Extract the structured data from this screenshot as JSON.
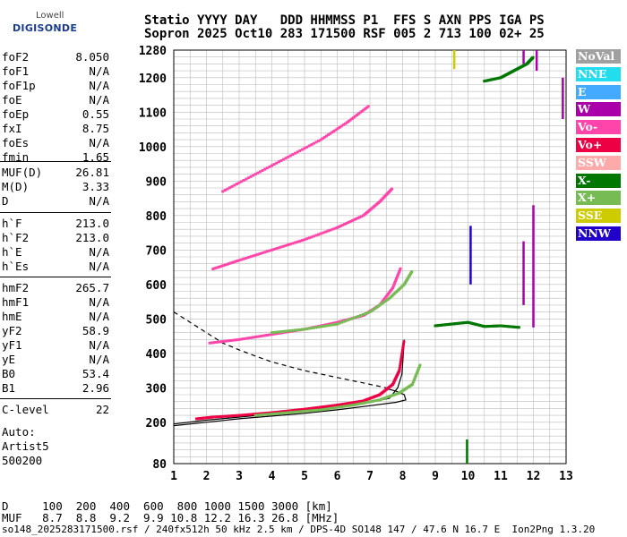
{
  "logo": {
    "line1": "Lowell",
    "line2": "DIGISONDE"
  },
  "header": {
    "row1": "Statio YYYY DAY   DDD HHMMSS P1  FFS S AXN PPS IGA PS",
    "row2": "Sopron 2025 Oct10 283 171500 RSF 005 2 713 100 02+ 25"
  },
  "params": {
    "group1": [
      {
        "k": "foF2",
        "v": "8.050"
      },
      {
        "k": "foF1",
        "v": "N/A"
      },
      {
        "k": "foF1p",
        "v": "N/A"
      },
      {
        "k": "foE",
        "v": "N/A"
      },
      {
        "k": "foEp",
        "v": "0.55"
      },
      {
        "k": "fxI",
        "v": "8.75"
      },
      {
        "k": "foEs",
        "v": "N/A"
      },
      {
        "k": "fmin",
        "v": "1.65"
      }
    ],
    "group2": [
      {
        "k": "MUF(D)",
        "v": "26.81"
      },
      {
        "k": "M(D)",
        "v": "3.33"
      },
      {
        "k": "D",
        "v": "N/A"
      }
    ],
    "group3": [
      {
        "k": "h`F",
        "v": "213.0"
      },
      {
        "k": "h`F2",
        "v": "213.0"
      },
      {
        "k": "h`E",
        "v": "N/A"
      },
      {
        "k": "h`Es",
        "v": "N/A"
      }
    ],
    "group4": [
      {
        "k": "hmF2",
        "v": "265.7"
      },
      {
        "k": "hmF1",
        "v": "N/A"
      },
      {
        "k": "hmE",
        "v": "N/A"
      },
      {
        "k": "yF2",
        "v": "58.9"
      },
      {
        "k": "yF1",
        "v": "N/A"
      },
      {
        "k": "yE",
        "v": "N/A"
      },
      {
        "k": "B0",
        "v": "53.4"
      },
      {
        "k": "B1",
        "v": "2.96"
      }
    ],
    "clevel": {
      "k": "C-level",
      "v": "22"
    }
  },
  "autoscaling": {
    "line1": "Auto:",
    "line2": "Artist5",
    "line3": "500200"
  },
  "legend": [
    {
      "label": "NoVal",
      "color": "#a0a0a0"
    },
    {
      "label": "NNE",
      "color": "#22ddee"
    },
    {
      "label": "E",
      "color": "#44aaff"
    },
    {
      "label": "W",
      "color": "#aa00aa"
    },
    {
      "label": "Vo-",
      "color": "#ff44aa"
    },
    {
      "label": "Vo+",
      "color": "#ee0044"
    },
    {
      "label": "SSW",
      "color": "#ffaaaa"
    },
    {
      "label": "X-",
      "color": "#007700"
    },
    {
      "label": "X+",
      "color": "#77bb55"
    },
    {
      "label": "SSE",
      "color": "#cccc00"
    },
    {
      "label": "NNW",
      "color": "#2200cc"
    }
  ],
  "footer": {
    "row1": "D     100  200  400  600  800 1000 1500 3000 [km]",
    "row2": "MUF   8.7  8.8  9.2  9.9 10.8 12.2 16.3 26.8 [MHz]",
    "filename": "so148_2025283171500.rsf / 240fx512h 50 kHz 2.5 km / DPS-4D SO148 147 / 47.6 N 16.7 E  Ion2Png 1.3.20"
  },
  "chart_data": {
    "type": "scatter",
    "xlim": [
      1,
      13
    ],
    "ylim": [
      80,
      1280
    ],
    "x_ticks": [
      1,
      2,
      3,
      4,
      5,
      6,
      7,
      8,
      9,
      10,
      11,
      12,
      13
    ],
    "y_ticks": [
      80,
      200,
      300,
      400,
      500,
      600,
      700,
      800,
      900,
      1000,
      1100,
      1200,
      1280
    ],
    "grid": true,
    "traces": [
      {
        "name": "O-trace F2",
        "color": "#ee0044",
        "points": [
          [
            1.7,
            210
          ],
          [
            2.2,
            215
          ],
          [
            3,
            220
          ],
          [
            4,
            228
          ],
          [
            5,
            238
          ],
          [
            6,
            250
          ],
          [
            6.8,
            262
          ],
          [
            7.3,
            280
          ],
          [
            7.7,
            310
          ],
          [
            7.9,
            350
          ],
          [
            8.05,
            440
          ]
        ]
      },
      {
        "name": "X-trace F2",
        "color": "#77bb55",
        "points": [
          [
            3.5,
            220
          ],
          [
            4.5,
            228
          ],
          [
            5.5,
            236
          ],
          [
            6.5,
            250
          ],
          [
            7.3,
            265
          ],
          [
            7.9,
            285
          ],
          [
            8.3,
            310
          ],
          [
            8.55,
            370
          ]
        ]
      },
      {
        "name": "2F O-trace",
        "color": "#ff44aa",
        "points": [
          [
            2.1,
            430
          ],
          [
            3,
            440
          ],
          [
            4,
            455
          ],
          [
            5,
            470
          ],
          [
            6,
            490
          ],
          [
            6.8,
            510
          ],
          [
            7.3,
            540
          ],
          [
            7.7,
            590
          ],
          [
            7.95,
            650
          ]
        ]
      },
      {
        "name": "2F X-trace",
        "color": "#77bb55",
        "points": [
          [
            4,
            460
          ],
          [
            5,
            470
          ],
          [
            6,
            485
          ],
          [
            7,
            520
          ],
          [
            7.6,
            560
          ],
          [
            8.05,
            600
          ],
          [
            8.3,
            640
          ]
        ]
      },
      {
        "name": "3F trace",
        "color": "#ff44aa",
        "points": [
          [
            2.2,
            645
          ],
          [
            3,
            670
          ],
          [
            4,
            700
          ],
          [
            5,
            730
          ],
          [
            6,
            765
          ],
          [
            6.8,
            800
          ],
          [
            7.3,
            840
          ],
          [
            7.7,
            880
          ]
        ]
      },
      {
        "name": "4F trace",
        "color": "#ff44aa",
        "points": [
          [
            2.5,
            870
          ],
          [
            3.5,
            920
          ],
          [
            4.5,
            970
          ],
          [
            5.5,
            1020
          ],
          [
            6.3,
            1070
          ],
          [
            7,
            1120
          ]
        ]
      },
      {
        "name": "high spread",
        "color": "#007700",
        "points": [
          [
            10.5,
            1190
          ],
          [
            11,
            1200
          ],
          [
            11.4,
            1220
          ],
          [
            11.8,
            1240
          ],
          [
            12,
            1260
          ]
        ]
      },
      {
        "name": "mid spread",
        "color": "#007700",
        "points": [
          [
            9,
            480
          ],
          [
            9.5,
            485
          ],
          [
            10,
            490
          ],
          [
            10.5,
            478
          ],
          [
            11,
            480
          ],
          [
            11.6,
            475
          ]
        ]
      }
    ],
    "model_curves": [
      {
        "name": "O profile",
        "style": "solid",
        "points": [
          [
            1,
            195
          ],
          [
            2,
            206
          ],
          [
            3,
            215
          ],
          [
            4,
            224
          ],
          [
            5,
            234
          ],
          [
            6,
            245
          ],
          [
            7,
            258
          ],
          [
            7.6,
            270
          ],
          [
            7.85,
            300
          ],
          [
            7.98,
            340
          ],
          [
            8.05,
            440
          ]
        ]
      },
      {
        "name": "X profile",
        "style": "solid",
        "points": [
          [
            1,
            190
          ],
          [
            2,
            200
          ],
          [
            3,
            210
          ],
          [
            4,
            218
          ],
          [
            5,
            226
          ],
          [
            6,
            236
          ],
          [
            7,
            248
          ],
          [
            7.8,
            258
          ],
          [
            8.1,
            265
          ],
          [
            8.05,
            280
          ],
          [
            7.8,
            290
          ],
          [
            7.5,
            298
          ]
        ]
      },
      {
        "name": "dashed",
        "style": "dashed",
        "points": [
          [
            1,
            520
          ],
          [
            1.5,
            490
          ],
          [
            2,
            460
          ],
          [
            2.5,
            430
          ],
          [
            3,
            410
          ],
          [
            3.5,
            392
          ],
          [
            4,
            375
          ],
          [
            5,
            350
          ],
          [
            6,
            330
          ],
          [
            7,
            310
          ],
          [
            7.6,
            298
          ]
        ]
      }
    ],
    "vertical_bars": [
      {
        "x": 9.58,
        "y0": 1225,
        "y1": 1280,
        "color": "#cccc00"
      },
      {
        "x": 9.97,
        "y0": 80,
        "y1": 150,
        "color": "#007700"
      },
      {
        "x": 10.08,
        "y0": 600,
        "y1": 770,
        "color": "#2200cc"
      },
      {
        "x": 11.7,
        "y0": 540,
        "y1": 725,
        "color": "#aa00aa"
      },
      {
        "x": 12.0,
        "y0": 475,
        "y1": 830,
        "color": "#aa00aa"
      },
      {
        "x": 12.9,
        "y0": 1080,
        "y1": 1200,
        "color": "#aa00aa"
      },
      {
        "x": 11.7,
        "y0": 1240,
        "y1": 1280,
        "color": "#aa00aa"
      },
      {
        "x": 12.1,
        "y0": 1220,
        "y1": 1280,
        "color": "#aa00aa"
      }
    ]
  }
}
